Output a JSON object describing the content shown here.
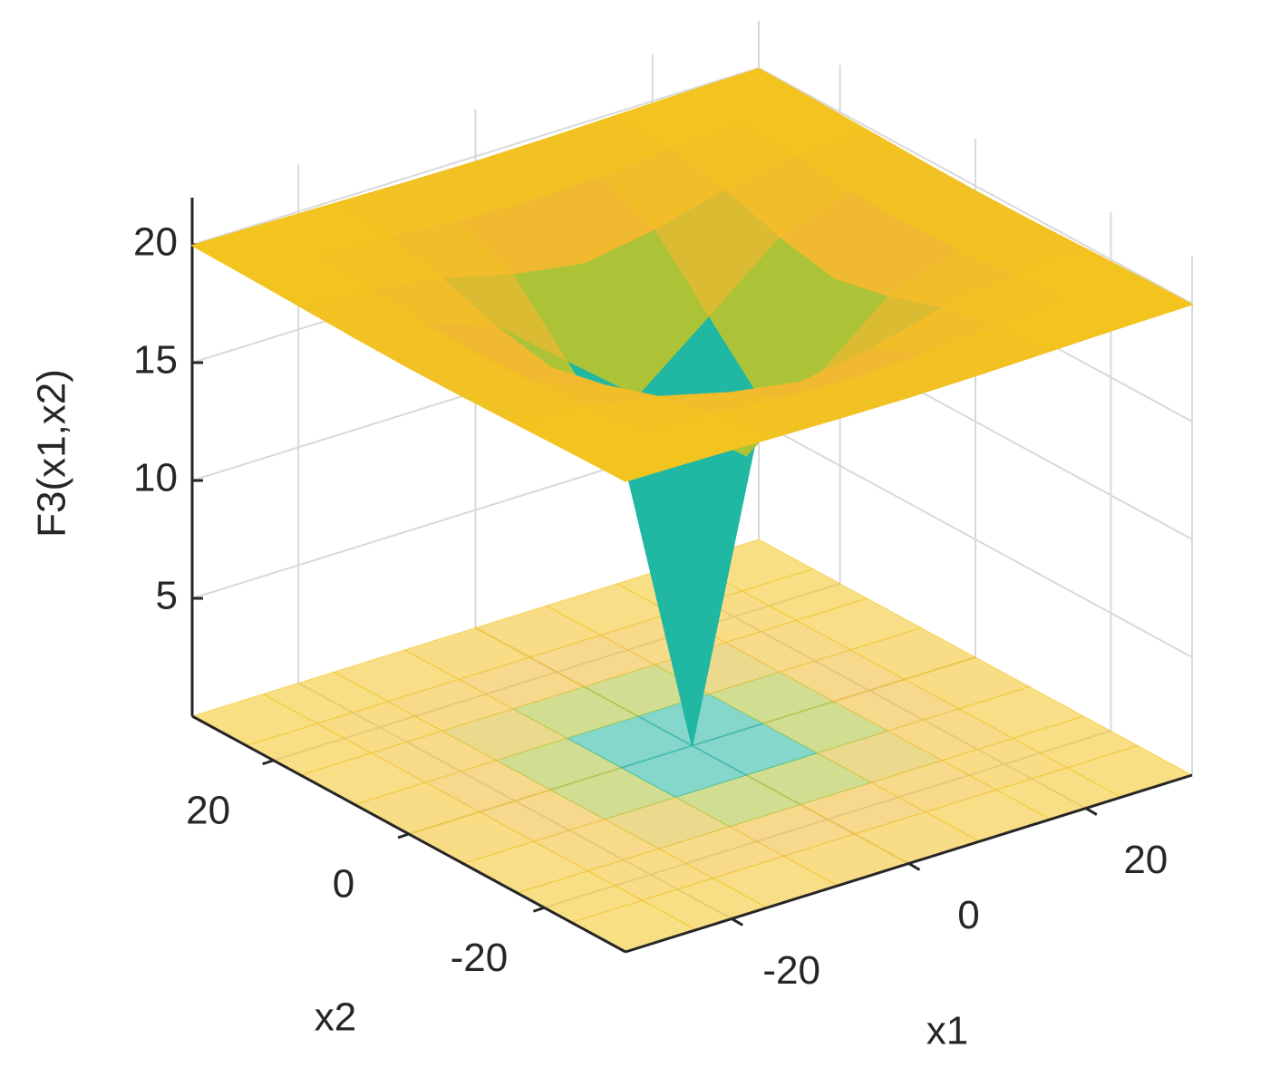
{
  "chart_data": {
    "type": "surface",
    "xlabel": "x1",
    "ylabel": "x2",
    "zlabel": "F3(x1,x2)",
    "x": [
      -32,
      -24,
      -16,
      -8,
      0,
      8,
      16,
      24,
      32
    ],
    "y": [
      -32,
      -24,
      -16,
      -8,
      0,
      8,
      16,
      24,
      32
    ],
    "z": [
      [
        19.97,
        19.93,
        19.87,
        19.81,
        19.78,
        19.81,
        19.87,
        19.93,
        19.97
      ],
      [
        19.93,
        19.84,
        19.66,
        19.44,
        19.33,
        19.44,
        19.66,
        19.84,
        19.93
      ],
      [
        19.87,
        19.66,
        19.18,
        18.41,
        17.92,
        18.41,
        19.18,
        19.66,
        19.87
      ],
      [
        19.81,
        19.44,
        18.41,
        15.96,
        13.55,
        15.96,
        18.41,
        19.44,
        19.81
      ],
      [
        19.78,
        19.33,
        17.92,
        13.55,
        0,
        13.55,
        17.92,
        19.33,
        19.78
      ],
      [
        19.81,
        19.44,
        18.41,
        15.96,
        13.55,
        15.96,
        18.41,
        19.44,
        19.81
      ],
      [
        19.87,
        19.66,
        19.18,
        18.41,
        17.92,
        18.41,
        19.18,
        19.66,
        19.87
      ],
      [
        19.93,
        19.84,
        19.66,
        19.44,
        19.33,
        19.44,
        19.66,
        19.84,
        19.93
      ],
      [
        19.97,
        19.93,
        19.87,
        19.81,
        19.78,
        19.81,
        19.87,
        19.93,
        19.97
      ]
    ],
    "xlim": [
      -32,
      32
    ],
    "ylim": [
      -32,
      32
    ],
    "zlim": [
      0,
      22
    ],
    "xticks": [
      -20,
      0,
      20
    ],
    "yticks": [
      -20,
      0,
      20
    ],
    "zticks": [
      5,
      10,
      15,
      20
    ],
    "grid": true,
    "floor_contour": true
  }
}
